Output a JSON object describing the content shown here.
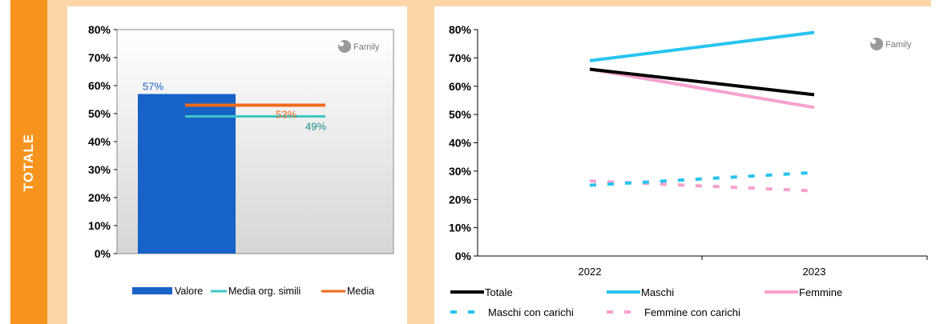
{
  "section_label": "TOTALE",
  "logo_text": "Family",
  "colors": {
    "valore": "#1763c7",
    "media_simili": "#3fc6c6",
    "media": "#f26a1b",
    "totale": "#000000",
    "maschi": "#27c4ef",
    "femmine": "#f7a1cd",
    "label_valore": "#1763c7",
    "label_media": "#f26a1b",
    "label_simili": "#178a8a"
  },
  "chart_data": [
    {
      "type": "bar",
      "ylim": [
        0,
        80
      ],
      "y_ticks": [
        "0%",
        "10%",
        "20%",
        "30%",
        "40%",
        "50%",
        "60%",
        "70%",
        "80%"
      ],
      "series": [
        {
          "name": "Valore",
          "value": 57,
          "label": "57%"
        },
        {
          "name": "Media org. simili",
          "value": 49,
          "label": "49%"
        },
        {
          "name": "Media",
          "value": 53,
          "label": "53%"
        }
      ],
      "legend": [
        "Valore",
        "Media org. simili",
        "Media"
      ]
    },
    {
      "type": "line",
      "categories": [
        "2022",
        "2023"
      ],
      "ylim": [
        0,
        80
      ],
      "y_ticks": [
        "0%",
        "10%",
        "20%",
        "30%",
        "40%",
        "50%",
        "60%",
        "70%",
        "80%"
      ],
      "series": [
        {
          "name": "Totale",
          "values": [
            66,
            57
          ]
        },
        {
          "name": "Maschi",
          "values": [
            69,
            79
          ]
        },
        {
          "name": "Femmine",
          "values": [
            66,
            52.5
          ]
        },
        {
          "name": "Maschi con carichi",
          "values": [
            25,
            29.5
          ]
        },
        {
          "name": "Femmine con carichi",
          "values": [
            26.5,
            23
          ]
        }
      ]
    }
  ]
}
